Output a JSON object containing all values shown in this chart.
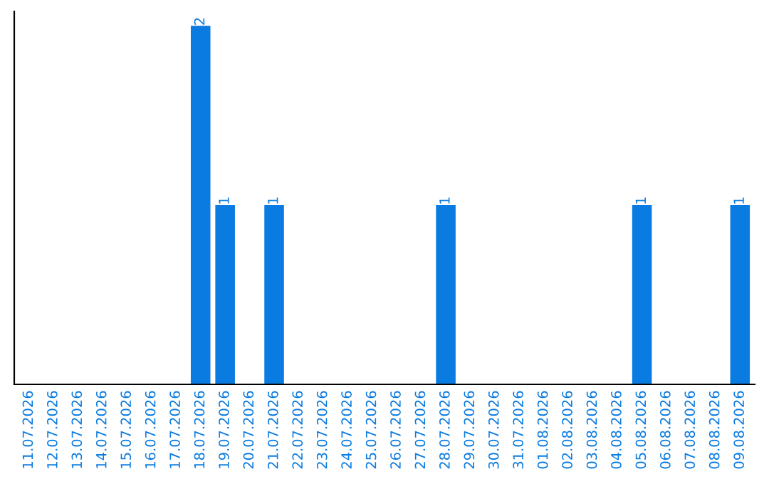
{
  "chart_data": {
    "type": "bar",
    "categories": [
      "11.07.2026",
      "12.07.2026",
      "13.07.2026",
      "14.07.2026",
      "15.07.2026",
      "16.07.2026",
      "17.07.2026",
      "18.07.2026",
      "19.07.2026",
      "20.07.2026",
      "21.07.2026",
      "22.07.2026",
      "23.07.2026",
      "24.07.2026",
      "25.07.2026",
      "26.07.2026",
      "27.07.2026",
      "28.07.2026",
      "29.07.2026",
      "30.07.2026",
      "31.07.2026",
      "01.08.2026",
      "02.08.2026",
      "03.08.2026",
      "04.08.2026",
      "05.08.2026",
      "06.08.2026",
      "07.08.2026",
      "08.08.2026",
      "09.08.2026"
    ],
    "values": [
      0,
      0,
      0,
      0,
      0,
      0,
      0,
      2,
      1,
      0,
      1,
      0,
      0,
      0,
      0,
      0,
      0,
      1,
      0,
      0,
      0,
      0,
      0,
      0,
      0,
      1,
      0,
      0,
      0,
      1
    ],
    "value_labels": [
      null,
      null,
      null,
      null,
      null,
      null,
      null,
      "2",
      "1",
      null,
      "1",
      null,
      null,
      null,
      null,
      null,
      null,
      "1",
      null,
      null,
      null,
      null,
      null,
      null,
      null,
      "1",
      null,
      null,
      null,
      "1"
    ],
    "color": "#0a7be0",
    "tick_labels": "x",
    "grid": false
  }
}
